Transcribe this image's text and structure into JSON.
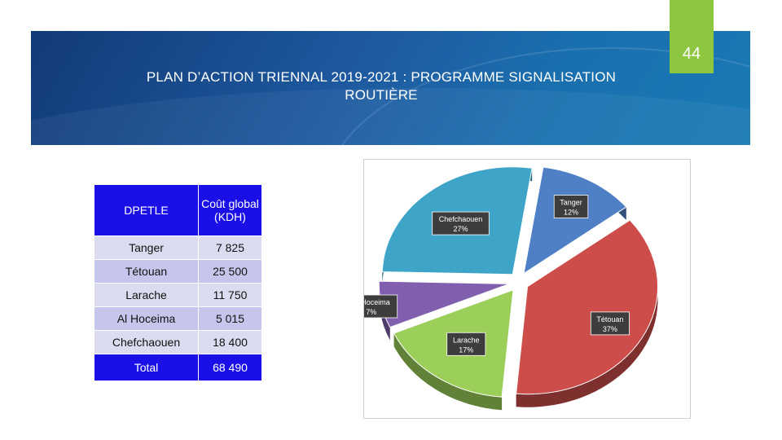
{
  "page": {
    "number": "44"
  },
  "title": {
    "line1": "PLAN D’ACTION TRIENNAL 2019-2021 : PROGRAMME SIGNALISATION",
    "line2": "ROUTIÈRE"
  },
  "table": {
    "headers": [
      "DPETLE",
      "Coût global (KDH)"
    ],
    "rows": [
      [
        "Tanger",
        "7 825"
      ],
      [
        "Tétouan",
        "25 500"
      ],
      [
        "Larache",
        "11 750"
      ],
      [
        "Al Hoceima",
        "5 015"
      ],
      [
        "Chefchaouen",
        "18 400"
      ]
    ],
    "total": [
      "Total",
      "68 490"
    ]
  },
  "chart_data": {
    "type": "pie",
    "style": "3d-exploded",
    "slices": [
      {
        "label": "Tanger",
        "value": 12,
        "percent_label": "12%",
        "color": "#4f7fc4"
      },
      {
        "label": "Tétouan",
        "value": 37,
        "percent_label": "37%",
        "color": "#cc4d4a"
      },
      {
        "label": "Larache",
        "value": 17,
        "percent_label": "17%",
        "color": "#9ccf5a"
      },
      {
        "label": "Al Hoceima",
        "value": 7,
        "percent_label": "7%",
        "color": "#7f5fae"
      },
      {
        "label": "Chefchaouen",
        "value": 27,
        "percent_label": "27%",
        "color": "#3fa5c8"
      }
    ]
  }
}
